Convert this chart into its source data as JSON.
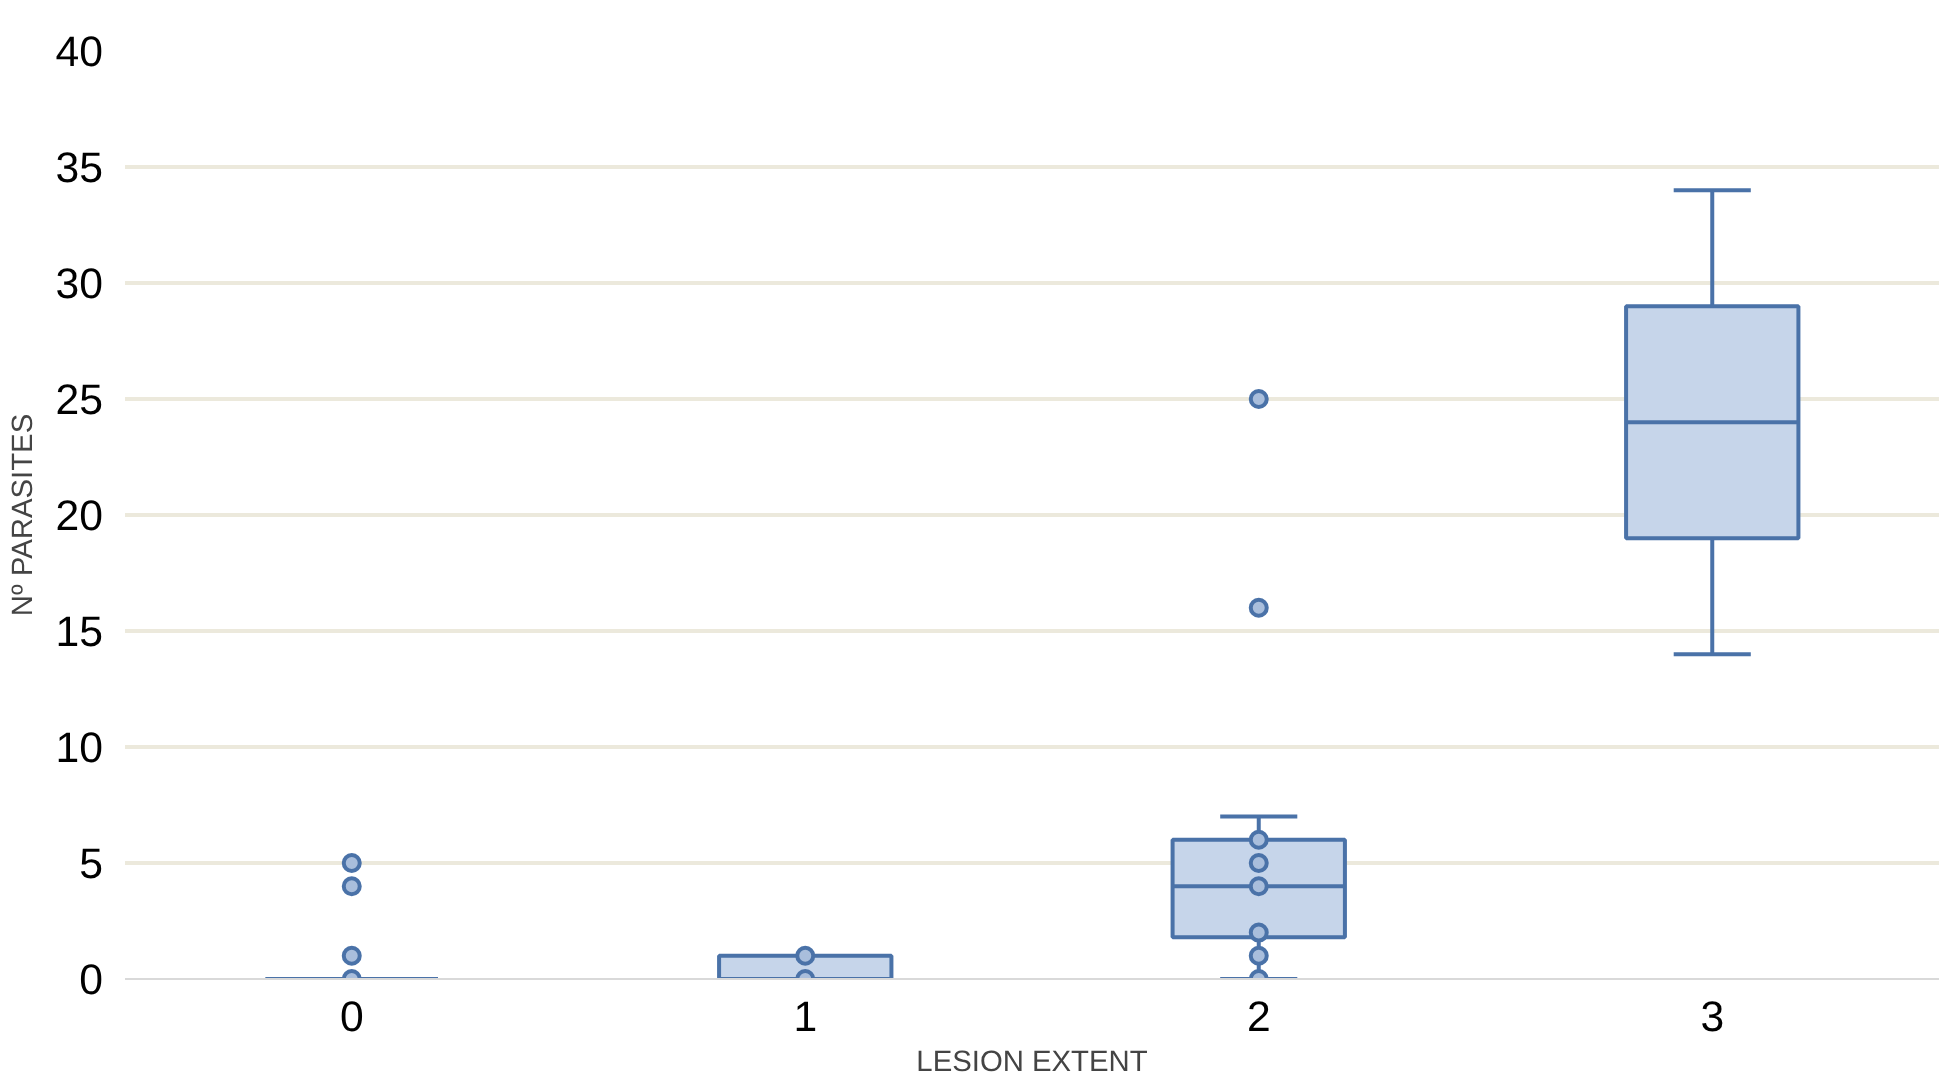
{
  "chart_data": {
    "type": "box",
    "xlabel": "LESION EXTENT",
    "ylabel": "Nº PARASITES",
    "categories": [
      "0",
      "1",
      "2",
      "3"
    ],
    "boxes": [
      {
        "low": 0,
        "q1": 0,
        "median": 0,
        "q3": 0,
        "high": 0,
        "outliers": [
          0,
          1,
          4,
          5
        ]
      },
      {
        "low": 0,
        "q1": 0,
        "median": 0,
        "q3": 1,
        "high": 1,
        "outliers": [
          0,
          1
        ]
      },
      {
        "low": 0,
        "q1": 1.8,
        "median": 4,
        "q3": 6,
        "high": 7,
        "outliers": [
          0,
          1,
          2,
          4,
          5,
          6,
          16,
          25
        ]
      },
      {
        "low": 14,
        "q1": 19,
        "median": 24,
        "q3": 29,
        "high": 34
      }
    ],
    "color": "#4a72a8",
    "ylim": [
      0,
      40
    ],
    "yticks": [
      0,
      5,
      10,
      15,
      20,
      25,
      30,
      35,
      40
    ],
    "grid": "y"
  }
}
